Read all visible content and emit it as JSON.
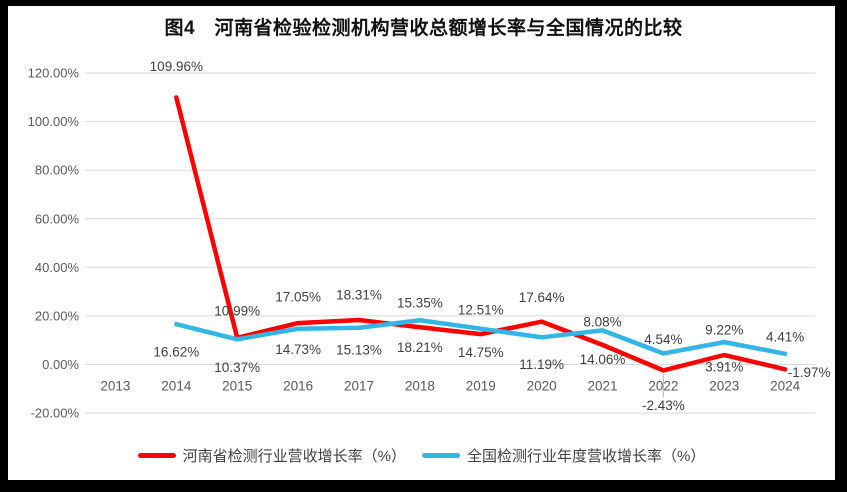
{
  "title": "图4　河南省检验检测机构营收总额增长率与全国情况的比较",
  "chart_data": {
    "type": "line",
    "title": "图4　河南省检验检测机构营收总额增长率与全国情况的比较",
    "categories": [
      "2013",
      "2014",
      "2015",
      "2016",
      "2017",
      "2018",
      "2019",
      "2020",
      "2021",
      "2022",
      "2023",
      "2024"
    ],
    "y_ticks": [
      "120.00%",
      "100.00%",
      "80.00%",
      "60.00%",
      "40.00%",
      "20.00%",
      "0.00%",
      "-20.00%"
    ],
    "ylim": [
      -20,
      120
    ],
    "grid": true,
    "legend_position": "bottom",
    "style": {
      "grid_color": "#D9D9D9",
      "axis_text_color": "#595959",
      "data_label_color": "#3F3F3F",
      "leader_line_color": "#BFBFBF",
      "background": "#FFFFFF",
      "frame_color": "#000000"
    },
    "series": [
      {
        "key": "henan",
        "name": "河南省检测行业营收增长率（%）",
        "color": "#FE0000",
        "values": [
          null,
          109.96,
          10.99,
          17.05,
          18.31,
          15.35,
          12.51,
          17.64,
          8.08,
          -2.43,
          3.91,
          -1.97
        ],
        "labels": [
          null,
          "109.96%",
          "10.99%",
          "17.05%",
          "18.31%",
          "15.35%",
          "12.51%",
          "17.64%",
          "8.08%",
          "-2.43%",
          "3.91%",
          "-1.97%"
        ],
        "label_offsets": [
          null,
          [
            0,
            -31
          ],
          [
            0,
            -27
          ],
          [
            0,
            -26
          ],
          [
            0,
            -25
          ],
          [
            0,
            -24
          ],
          [
            0,
            -24
          ],
          [
            0,
            -24
          ],
          [
            0,
            -23
          ],
          [
            0,
            35
          ],
          [
            0,
            12
          ],
          [
            24,
            3
          ]
        ]
      },
      {
        "key": "national",
        "name": "全国检测行业年度营收增长率（%）",
        "color": "#33B5E6",
        "values": [
          null,
          16.62,
          10.37,
          14.73,
          15.13,
          18.21,
          14.75,
          11.19,
          14.06,
          4.54,
          9.22,
          4.41
        ],
        "labels": [
          null,
          "16.62%",
          "10.37%",
          "14.73%",
          "15.13%",
          "18.21%",
          "14.75%",
          "11.19%",
          "14.06%",
          "4.54%",
          "9.22%",
          "4.41%"
        ],
        "label_offsets": [
          null,
          [
            0,
            28
          ],
          [
            0,
            28
          ],
          [
            0,
            21
          ],
          [
            0,
            22
          ],
          [
            0,
            27
          ],
          [
            0,
            24
          ],
          [
            0,
            27
          ],
          [
            0,
            29
          ],
          [
            0,
            -14
          ],
          [
            0,
            -12
          ],
          [
            0,
            -17
          ]
        ]
      }
    ],
    "leader": {
      "series": 0,
      "index": 9
    }
  }
}
